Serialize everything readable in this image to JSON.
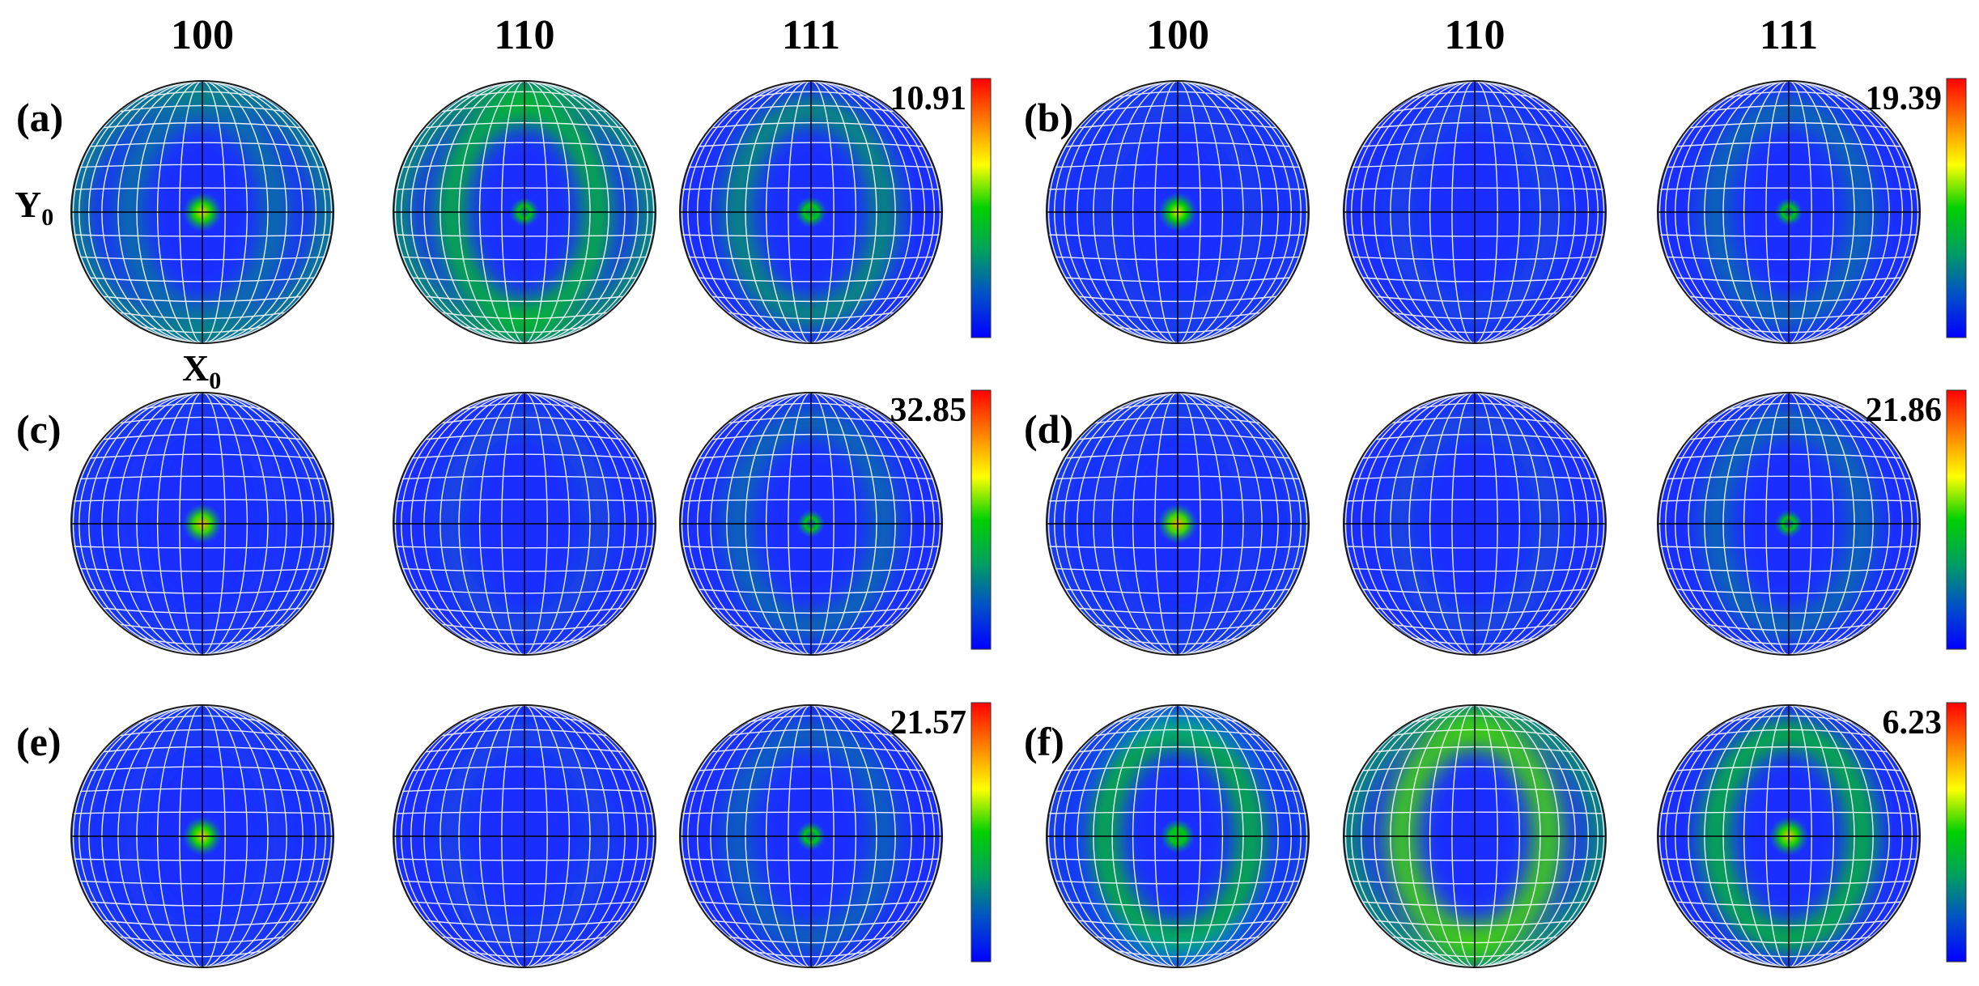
{
  "headers": [
    "100",
    "110",
    "111",
    "100",
    "110",
    "111"
  ],
  "axis_labels": {
    "y": "Y",
    "y_sub": "0",
    "x": "X",
    "x_sub": "0"
  },
  "panels": [
    {
      "label": "(a)",
      "max": "10.91",
      "spots": [
        0.82,
        0.2,
        0.32
      ],
      "rings": [
        0.35,
        0.55,
        0.45
      ],
      "rim": [
        0.45,
        0.55,
        0.0
      ]
    },
    {
      "label": "(b)",
      "max": "19.39",
      "spots": [
        0.8,
        0.0,
        0.1
      ],
      "rings": [
        0.12,
        0.15,
        0.32
      ],
      "rim": [
        0.05,
        0.0,
        0.0
      ]
    },
    {
      "label": "(c)",
      "max": "32.85",
      "spots": [
        0.85,
        0.0,
        0.08
      ],
      "rings": [
        0.05,
        0.18,
        0.32
      ],
      "rim": [
        0.05,
        0.0,
        0.0
      ]
    },
    {
      "label": "(d)",
      "max": "21.86",
      "spots": [
        0.86,
        0.0,
        0.1
      ],
      "rings": [
        0.1,
        0.18,
        0.32
      ],
      "rim": [
        0.08,
        0.0,
        0.0
      ]
    },
    {
      "label": "(e)",
      "max": "21.57",
      "spots": [
        0.82,
        0.0,
        0.18
      ],
      "rings": [
        0.08,
        0.15,
        0.3
      ],
      "rim": [
        0.05,
        0.0,
        0.0
      ]
    },
    {
      "label": "(f)",
      "max": "6.23",
      "spots": [
        0.5,
        0.0,
        0.82
      ],
      "rings": [
        0.55,
        0.65,
        0.55
      ],
      "rim": [
        0.1,
        0.55,
        0.0
      ]
    }
  ],
  "colorbar_colors": [
    "#0000ff",
    "#0050c8",
    "#00a060",
    "#00d000",
    "#ffff00",
    "#ff8000",
    "#ff0000"
  ],
  "background_blue": "#1a2fff"
}
